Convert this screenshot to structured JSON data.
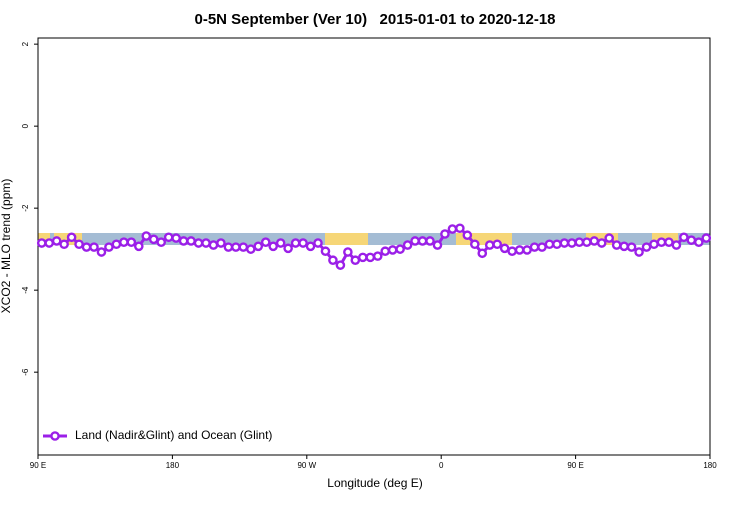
{
  "chart_data": {
    "type": "line",
    "title": "0-5N September (Ver 10)   2015-01-01 to 2020-12-18",
    "xlabel": "Longitude (deg E)",
    "ylabel": "XCO2 - MLO trend (ppm)",
    "xlim": [
      90,
      540
    ],
    "xticks": [
      {
        "value": 90,
        "label": "90 E"
      },
      180,
      {
        "value": 270,
        "label": "90 W"
      },
      {
        "value": 360,
        "label": "0"
      },
      {
        "value": 450,
        "label": "90 E"
      },
      {
        "value": 540,
        "label": "180"
      }
    ],
    "ylim": [
      -8.02,
      2.15
    ],
    "yticks": [
      2,
      0,
      -2,
      -4,
      -6
    ],
    "legend": "bottom-left",
    "x": [
      92.5,
      97.5,
      102.5,
      107.5,
      112.5,
      117.5,
      122.5,
      127.5,
      132.5,
      137.5,
      142.5,
      147.5,
      152.5,
      157.5,
      162.5,
      167.5,
      172.5,
      177.5,
      182.5,
      187.5,
      192.5,
      197.5,
      202.5,
      207.5,
      212.5,
      217.5,
      222.5,
      227.5,
      232.5,
      237.5,
      242.5,
      247.5,
      252.5,
      257.5,
      262.5,
      267.5,
      272.5,
      277.5,
      282.5,
      287.5,
      292.5,
      297.5,
      302.5,
      307.5,
      312.5,
      317.5,
      322.5,
      327.5,
      332.5,
      337.5,
      342.5,
      347.5,
      352.5,
      357.5,
      362.5,
      367.5,
      372.5,
      377.5,
      382.5,
      387.5,
      392.5,
      397.5,
      402.5,
      407.5,
      412.5,
      417.5,
      422.5,
      427.5,
      432.5,
      437.5,
      442.5,
      447.5,
      452.5,
      457.5,
      462.5,
      467.5,
      472.5,
      477.5,
      482.5,
      487.5,
      492.5,
      497.5,
      502.5,
      507.5,
      512.5,
      517.5,
      522.5,
      527.5,
      532.5,
      537.5
    ],
    "series": [
      {
        "name": "Land (Nadir&Glint) and Ocean (Glint)",
        "color": "#9b1fe8",
        "values": [
          -2.85,
          -2.85,
          -2.8,
          -2.88,
          -2.71,
          -2.88,
          -2.95,
          -2.95,
          -3.07,
          -2.95,
          -2.88,
          -2.83,
          -2.83,
          -2.93,
          -2.68,
          -2.76,
          -2.83,
          -2.71,
          -2.73,
          -2.8,
          -2.8,
          -2.85,
          -2.85,
          -2.9,
          -2.85,
          -2.95,
          -2.95,
          -2.95,
          -3.0,
          -2.93,
          -2.83,
          -2.93,
          -2.85,
          -2.98,
          -2.85,
          -2.85,
          -2.93,
          -2.85,
          -3.05,
          -3.27,
          -3.39,
          -3.07,
          -3.27,
          -3.2,
          -3.2,
          -3.17,
          -3.05,
          -3.02,
          -3.0,
          -2.9,
          -2.8,
          -2.8,
          -2.8,
          -2.9,
          -2.63,
          -2.51,
          -2.49,
          -2.66,
          -2.88,
          -3.1,
          -2.9,
          -2.88,
          -2.98,
          -3.05,
          -3.02,
          -3.02,
          -2.95,
          -2.95,
          -2.88,
          -2.88,
          -2.85,
          -2.85,
          -2.83,
          -2.83,
          -2.8,
          -2.85,
          -2.73,
          -2.9,
          -2.93,
          -2.95,
          -3.07,
          -2.95,
          -2.88,
          -2.83,
          -2.83,
          -2.9,
          -2.71,
          -2.78,
          -2.83,
          -2.73
        ]
      }
    ]
  }
}
